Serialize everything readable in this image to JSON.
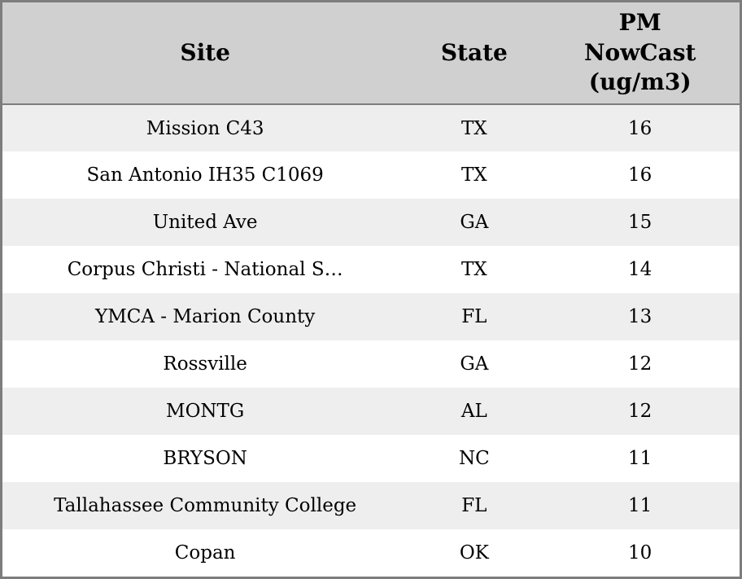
{
  "table": {
    "columns": [
      {
        "id": "site",
        "label": "Site"
      },
      {
        "id": "state",
        "label": "State"
      },
      {
        "id": "pm",
        "label": "PM NowCast (ug/m3)"
      }
    ],
    "rows": [
      {
        "site": "Mission C43",
        "state": "TX",
        "pm": "16"
      },
      {
        "site": "San Antonio IH35 C1069",
        "state": "TX",
        "pm": "16"
      },
      {
        "site": "United Ave",
        "state": "GA",
        "pm": "15"
      },
      {
        "site": "Corpus Christi - National S…",
        "state": "TX",
        "pm": "14"
      },
      {
        "site": "YMCA - Marion County",
        "state": "FL",
        "pm": "13"
      },
      {
        "site": "Rossville",
        "state": "GA",
        "pm": "12"
      },
      {
        "site": "MONTG",
        "state": "AL",
        "pm": "12"
      },
      {
        "site": "BRYSON",
        "state": "NC",
        "pm": "11"
      },
      {
        "site": "Tallahassee Community College",
        "state": "FL",
        "pm": "11"
      },
      {
        "site": "Copan",
        "state": "OK",
        "pm": "10"
      }
    ]
  },
  "colors": {
    "header_bg": "#d0d0d0",
    "row_alt_bg": "#eeeeee",
    "row_bg": "#ffffff",
    "border": "#7d7d7d",
    "text": "#000000"
  },
  "chart_data": {
    "type": "table",
    "columns": [
      "Site",
      "State",
      "PM NowCast (ug/m3)"
    ],
    "rows": [
      [
        "Mission C43",
        "TX",
        16
      ],
      [
        "San Antonio IH35 C1069",
        "TX",
        16
      ],
      [
        "United Ave",
        "GA",
        15
      ],
      [
        "Corpus Christi - National S…",
        "TX",
        14
      ],
      [
        "YMCA - Marion County",
        "FL",
        13
      ],
      [
        "Rossville",
        "GA",
        12
      ],
      [
        "MONTG",
        "AL",
        12
      ],
      [
        "BRYSON",
        "NC",
        11
      ],
      [
        "Tallahassee Community College",
        "FL",
        11
      ],
      [
        "Copan",
        "OK",
        10
      ]
    ],
    "notes": "Sites ranked by PM NowCast concentration, descending; zebra-striped table widget"
  }
}
